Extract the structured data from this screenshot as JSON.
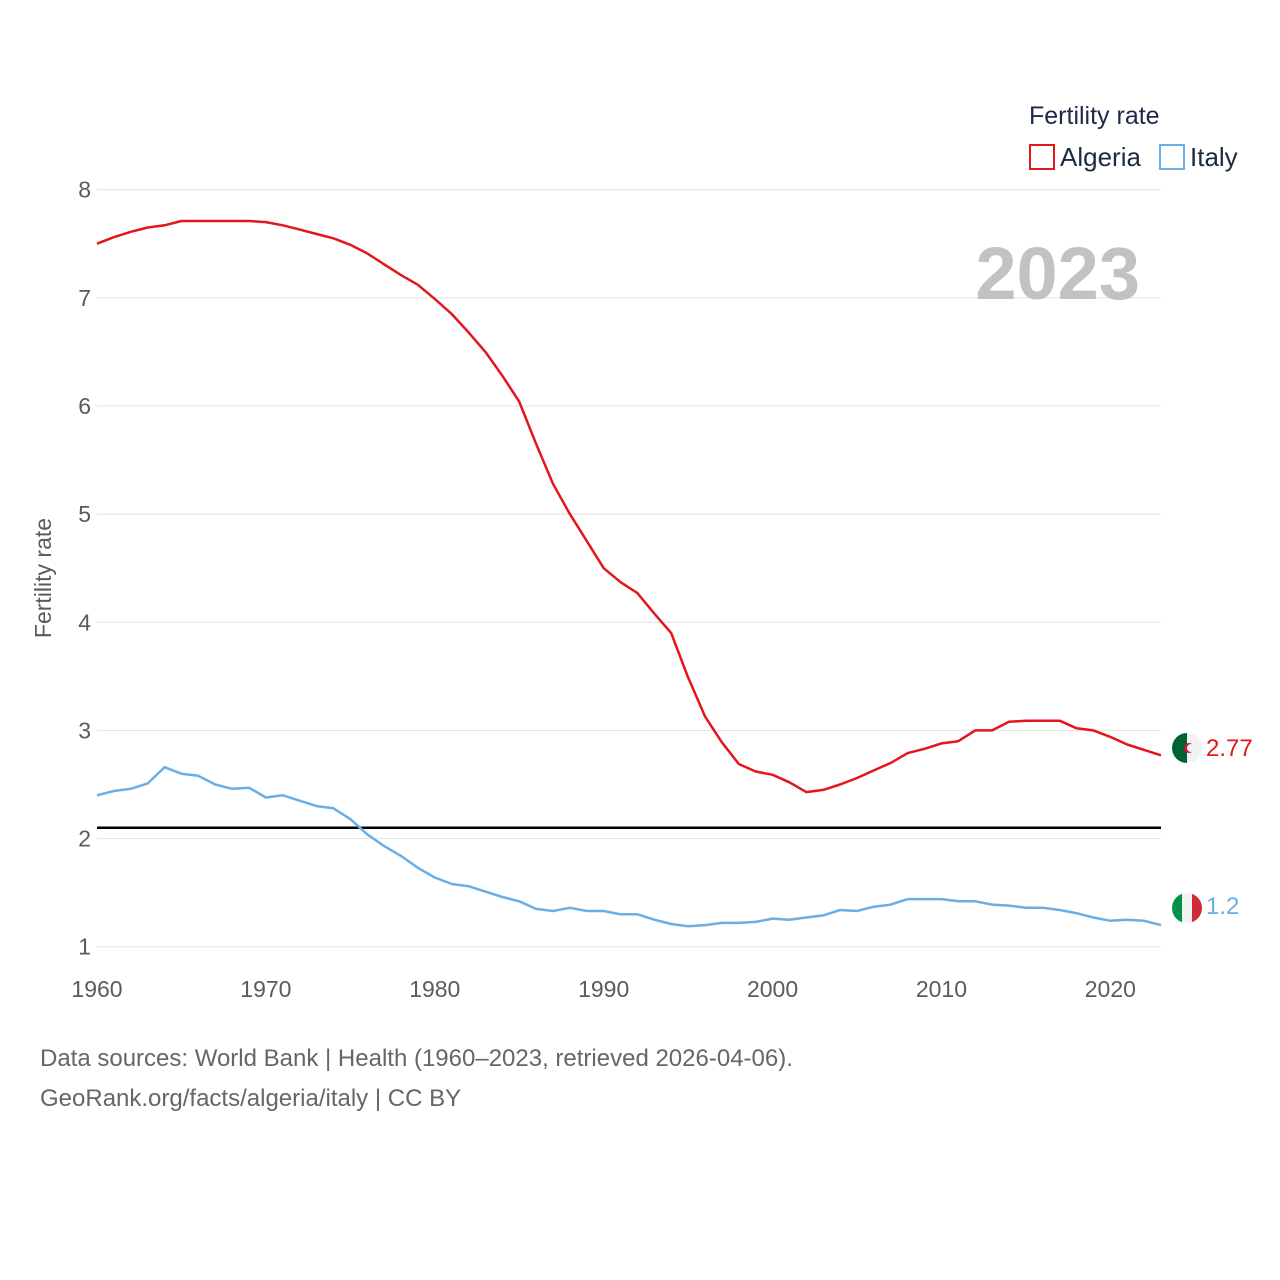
{
  "chart_data": {
    "type": "line",
    "title": "2023",
    "ylabel": "Fertility rate",
    "xlim": [
      1960,
      2023
    ],
    "ylim": [
      0.6,
      8.2
    ],
    "y_ticks": [
      1,
      2,
      3,
      4,
      5,
      6,
      7,
      8
    ],
    "x_ticks": [
      1960,
      1970,
      1980,
      1990,
      2000,
      2010,
      2020
    ],
    "legend_title": "Fertility rate",
    "legend_position": "top-right",
    "reference_line": {
      "value": 2.1,
      "color": "#000000"
    },
    "x": [
      1960,
      1961,
      1962,
      1963,
      1964,
      1965,
      1966,
      1967,
      1968,
      1969,
      1970,
      1971,
      1972,
      1973,
      1974,
      1975,
      1976,
      1977,
      1978,
      1979,
      1980,
      1981,
      1982,
      1983,
      1984,
      1985,
      1986,
      1987,
      1988,
      1989,
      1990,
      1991,
      1992,
      1993,
      1994,
      1995,
      1996,
      1997,
      1998,
      1999,
      2000,
      2001,
      2002,
      2003,
      2004,
      2005,
      2006,
      2007,
      2008,
      2009,
      2010,
      2011,
      2012,
      2013,
      2014,
      2015,
      2016,
      2017,
      2018,
      2019,
      2020,
      2021,
      2022,
      2023
    ],
    "series": [
      {
        "name": "Algeria",
        "color": "#e3161c",
        "end_label": "2.77",
        "values": [
          7.5,
          7.56,
          7.61,
          7.65,
          7.67,
          7.71,
          7.71,
          7.71,
          7.71,
          7.71,
          7.7,
          7.67,
          7.63,
          7.59,
          7.55,
          7.49,
          7.41,
          7.31,
          7.21,
          7.12,
          6.99,
          6.85,
          6.68,
          6.5,
          6.28,
          6.04,
          5.65,
          5.28,
          5.0,
          4.75,
          4.5,
          4.37,
          4.27,
          4.08,
          3.9,
          3.49,
          3.13,
          2.89,
          2.69,
          2.62,
          2.59,
          2.52,
          2.43,
          2.45,
          2.5,
          2.56,
          2.63,
          2.7,
          2.79,
          2.83,
          2.88,
          2.9,
          3.0,
          3.0,
          3.08,
          3.09,
          3.09,
          3.09,
          3.02,
          3.0,
          2.94,
          2.87,
          2.82,
          2.77
        ]
      },
      {
        "name": "Italy",
        "color": "#6aaee6",
        "end_label": "1.2",
        "values": [
          2.4,
          2.44,
          2.46,
          2.51,
          2.66,
          2.6,
          2.58,
          2.5,
          2.46,
          2.47,
          2.38,
          2.4,
          2.35,
          2.3,
          2.28,
          2.18,
          2.04,
          1.93,
          1.84,
          1.73,
          1.64,
          1.58,
          1.56,
          1.51,
          1.46,
          1.42,
          1.35,
          1.33,
          1.36,
          1.33,
          1.33,
          1.3,
          1.3,
          1.25,
          1.21,
          1.19,
          1.2,
          1.22,
          1.22,
          1.23,
          1.26,
          1.25,
          1.27,
          1.29,
          1.34,
          1.33,
          1.37,
          1.39,
          1.44,
          1.44,
          1.44,
          1.42,
          1.42,
          1.39,
          1.38,
          1.36,
          1.36,
          1.34,
          1.31,
          1.27,
          1.24,
          1.25,
          1.24,
          1.2
        ]
      }
    ]
  },
  "source": {
    "line1": "Data sources: World Bank | Health (1960–2023, retrieved 2026-04-06).",
    "line2": "GeoRank.org/facts/algeria/italy | CC BY"
  }
}
